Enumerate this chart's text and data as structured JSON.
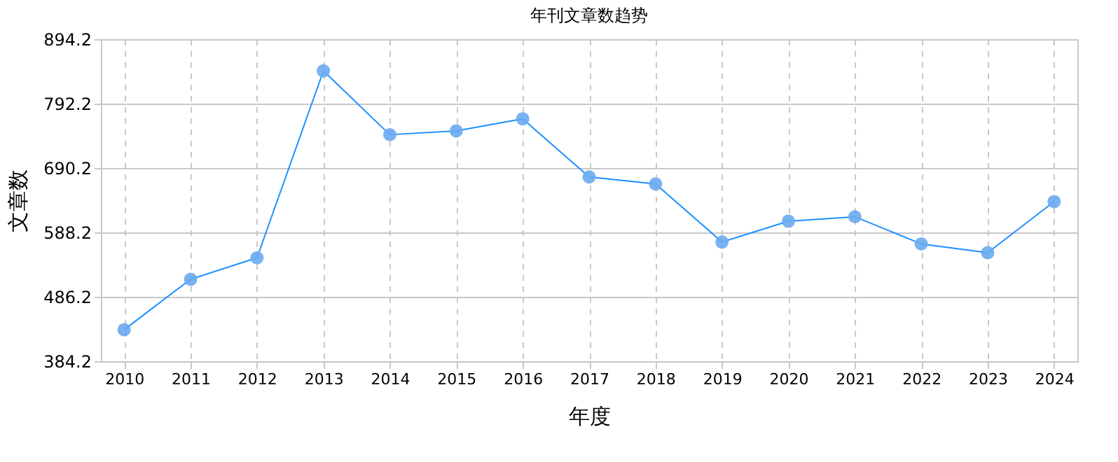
{
  "chart_data": {
    "type": "line",
    "title": "年刊文章数趋势",
    "xlabel": "年度",
    "ylabel": "文章数",
    "categories": [
      "2010",
      "2011",
      "2012",
      "2013",
      "2014",
      "2015",
      "2016",
      "2017",
      "2018",
      "2019",
      "2020",
      "2021",
      "2022",
      "2023",
      "2024"
    ],
    "series": [
      {
        "color": "#1e90ff",
        "values": [
          434,
          514,
          548,
          844,
          743,
          749,
          768,
          676,
          665,
          573,
          606,
          613,
          570,
          556,
          637
        ]
      }
    ],
    "ylim": [
      384.2,
      894.2
    ],
    "yticks": [
      {
        "value": 384.2,
        "label": "384.2"
      },
      {
        "value": 486.2,
        "label": "486.2"
      },
      {
        "value": 588.2,
        "label": "588.2"
      },
      {
        "value": 690.2,
        "label": "690.2"
      },
      {
        "value": 792.2,
        "label": "792.2"
      },
      {
        "value": 894.2,
        "label": "894.2"
      }
    ],
    "grid": true,
    "marker": "circle",
    "line_style": "solid"
  }
}
